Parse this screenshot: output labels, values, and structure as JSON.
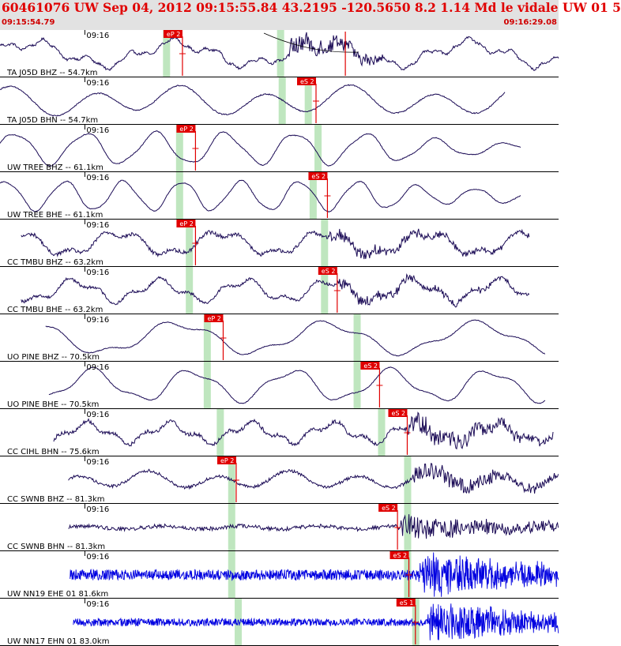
{
  "header": {
    "title": "60461076 UW Sep 04, 2012 09:15:55.84   43.2195  -120.5650   8.2  1.14  Md  le  vidale  UW 01    5",
    "start_time": "09:15:54.79",
    "end_time": "09:16:29.08"
  },
  "colors": {
    "header_bg": "#e2e2e2",
    "title": "#e00000",
    "trace_dark": "#1a0a55",
    "trace_blue": "#0000e0",
    "pick_flag": "#e00000",
    "shade": "#bfe6bf"
  },
  "chart_data": {
    "type": "line",
    "x_unit": "seconds after 09:15:54.79",
    "xlim": [
      0,
      34.29
    ],
    "tick_label": "09:16",
    "tick_time": 5.21,
    "traces": [
      {
        "label": "TA J05D BHZ -- 54.7km",
        "color": "dark",
        "data_start": 0,
        "data_end": 34.29,
        "shade": [
          10.2,
          17.2
        ],
        "pick": {
          "label": "eP 2",
          "time": 11.2
        },
        "s_mark": 21.2,
        "waves": [
          [
            0.55,
            9,
            0.3
          ],
          [
            0.25,
            2.6,
            1.1
          ],
          [
            0.08,
            0.9,
            2.0
          ]
        ],
        "noise": 0.06,
        "burst": [
          17.5,
          23.5,
          0.55
        ],
        "aux": true
      },
      {
        "label": "TA J05D BHN -- 54.7km",
        "color": "dark",
        "data_start": 0,
        "data_end": 31,
        "shade": [
          17.3,
          18.9
        ],
        "pick": {
          "label": "eS 2",
          "time": 19.4
        },
        "waves": [
          [
            0.6,
            5.2,
            0.7
          ],
          [
            0.25,
            11,
            2.0
          ]
        ],
        "noise": 0.03
      },
      {
        "label": "UW TREE BHZ -- 61.1km",
        "color": "dark",
        "data_start": 0,
        "data_end": 32,
        "shade": [
          11.0,
          19.5
        ],
        "pick": {
          "label": "eP 2",
          "time": 12.0
        },
        "waves": [
          [
            0.8,
            4.3,
            0.2
          ],
          [
            0.12,
            1.9,
            1.0
          ]
        ],
        "noise": 0.02,
        "decay": [
          22,
          0.35
        ]
      },
      {
        "label": "UW TREE BHE -- 61.1km",
        "color": "dark",
        "data_start": 0,
        "data_end": 32,
        "shade": [
          11.0,
          19.2
        ],
        "pick": {
          "label": "eS 2",
          "time": 20.1
        },
        "waves": [
          [
            0.75,
            3.6,
            0.9
          ],
          [
            0.08,
            1.5,
            2.0
          ]
        ],
        "noise": 0.02,
        "decay": [
          22,
          0.5
        ]
      },
      {
        "label": "CC TMBU BHZ -- 63.2km",
        "color": "dark",
        "data_start": 1.3,
        "data_end": 32.5,
        "shade": [
          11.6,
          19.9
        ],
        "pick": {
          "label": "eP 2",
          "time": 12.0
        },
        "waves": [
          [
            0.55,
            6.3,
            0.6
          ],
          [
            0.2,
            2.1,
            1.4
          ]
        ],
        "noise": 0.1,
        "burst": [
          20,
          32.5,
          0.32
        ]
      },
      {
        "label": "CC TMBU BHE -- 63.2km",
        "color": "dark",
        "data_start": 1.3,
        "data_end": 32.5,
        "shade": [
          11.6,
          19.9
        ],
        "pick": {
          "label": "eS 2",
          "time": 20.7
        },
        "waves": [
          [
            0.5,
            5.2,
            2.3
          ],
          [
            0.2,
            1.9,
            0.4
          ]
        ],
        "noise": 0.08,
        "burst": [
          20.5,
          32.5,
          0.3
        ]
      },
      {
        "label": "UO PINE BHZ -- 70.5km",
        "color": "dark",
        "data_start": 2.8,
        "data_end": 33.5,
        "shade": [
          12.7,
          21.9
        ],
        "pick": {
          "label": "eP 2",
          "time": 13.7
        },
        "waves": [
          [
            0.75,
            9.2,
            0.4
          ],
          [
            0.2,
            3.2,
            1.0
          ]
        ],
        "noise": 0.02
      },
      {
        "label": "UO PINE BHE -- 70.5km",
        "color": "dark",
        "data_start": 3.0,
        "data_end": 33.5,
        "shade": [
          12.7,
          21.9
        ],
        "pick": {
          "label": "eS 2",
          "time": 23.3
        },
        "waves": [
          [
            0.75,
            6.1,
            2.0
          ],
          [
            0.2,
            2.6,
            0.3
          ]
        ],
        "noise": 0.02
      },
      {
        "label": "CC CIHL BHN -- 75.6km",
        "color": "dark",
        "data_start": 3.3,
        "data_end": 34.0,
        "shade": [
          13.5,
          23.4
        ],
        "pick": {
          "label": "eS 2",
          "time": 25.0
        },
        "waves": [
          [
            0.45,
            5.0,
            1.1
          ],
          [
            0.18,
            1.7,
            0.5
          ]
        ],
        "noise": 0.1,
        "burst": [
          24.8,
          34.0,
          0.6
        ]
      },
      {
        "label": "CC SWNB BHZ -- 81.3km",
        "color": "dark",
        "data_start": 4.2,
        "data_end": 35.0,
        "shade": [
          14.2,
          25.0
        ],
        "pick": {
          "label": "eP 2",
          "time": 14.5
        },
        "waves": [
          [
            0.35,
            4.3,
            0.8
          ],
          [
            0.15,
            9,
            1.7
          ]
        ],
        "noise": 0.08,
        "burst": [
          25.2,
          35.0,
          0.6
        ]
      },
      {
        "label": "CC SWNB BHN -- 81.3km",
        "color": "dark",
        "data_start": 4.2,
        "data_end": 35.0,
        "shade": [
          14.2,
          25.0
        ],
        "pick": {
          "label": "eS 2",
          "time": 24.4
        },
        "waves": [
          [
            0.08,
            4.8,
            1.1
          ]
        ],
        "noise": 0.1,
        "burst": [
          24.4,
          35.0,
          0.75
        ]
      },
      {
        "label": "UW NN19 EHE 01 81.6km",
        "color": "blue",
        "data_start": 4.3,
        "data_end": 35.0,
        "shade": [
          14.2,
          25.0
        ],
        "pick": {
          "label": "eS 2",
          "time": 25.1
        },
        "waves": [],
        "noise": 0.28,
        "burst": [
          25.6,
          35.0,
          1.2
        ],
        "hf": true
      },
      {
        "label": "UW NN17 EHN 01 83.0km",
        "color": "blue",
        "data_start": 4.5,
        "data_end": 35.0,
        "shade": [
          14.6,
          25.5
        ],
        "pick": {
          "label": "eS 1",
          "time": 25.5
        },
        "waves": [],
        "noise": 0.2,
        "burst": [
          26.1,
          35.0,
          1.1
        ],
        "hf": true
      }
    ]
  }
}
